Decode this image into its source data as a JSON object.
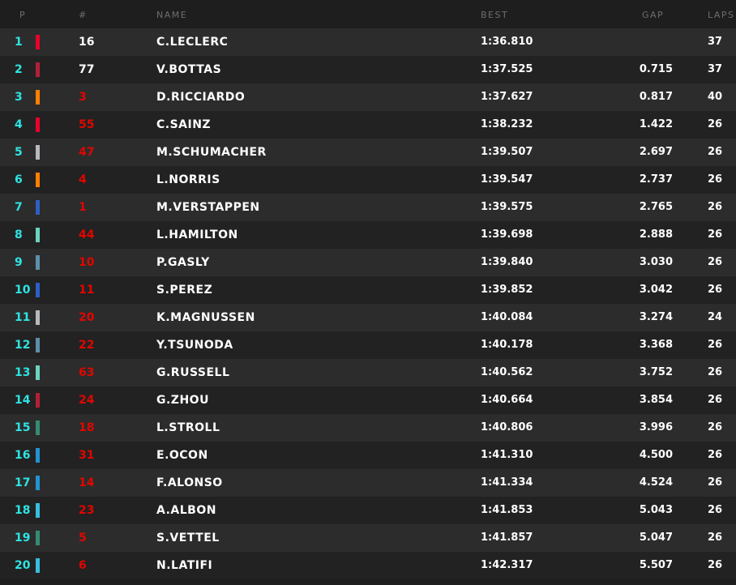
{
  "headers": {
    "pos": "P",
    "num": "#",
    "name": "NAME",
    "best": "BEST",
    "gap": "GAP",
    "laps": "LAPS"
  },
  "rows": [
    {
      "pos": "1",
      "num": "16",
      "name": "C.LECLERC",
      "best": "1:36.810",
      "gap": "",
      "laps": "37",
      "team_color": "#e8002d",
      "num_color": "#ffffff"
    },
    {
      "pos": "2",
      "num": "77",
      "name": "V.BOTTAS",
      "best": "1:37.525",
      "gap": "0.715",
      "laps": "37",
      "team_color": "#b12039",
      "num_color": "#ffffff"
    },
    {
      "pos": "3",
      "num": "3",
      "name": "D.RICCIARDO",
      "best": "1:37.627",
      "gap": "0.817",
      "laps": "40",
      "team_color": "#ff8000"
    },
    {
      "pos": "4",
      "num": "55",
      "name": "C.SAINZ",
      "best": "1:38.232",
      "gap": "1.422",
      "laps": "26",
      "team_color": "#e8002d"
    },
    {
      "pos": "5",
      "num": "47",
      "name": "M.SCHUMACHER",
      "best": "1:39.507",
      "gap": "2.697",
      "laps": "26",
      "team_color": "#b6babd"
    },
    {
      "pos": "6",
      "num": "4",
      "name": "L.NORRIS",
      "best": "1:39.547",
      "gap": "2.737",
      "laps": "26",
      "team_color": "#ff8000"
    },
    {
      "pos": "7",
      "num": "1",
      "name": "M.VERSTAPPEN",
      "best": "1:39.575",
      "gap": "2.765",
      "laps": "26",
      "team_color": "#2d5fc4"
    },
    {
      "pos": "8",
      "num": "44",
      "name": "L.HAMILTON",
      "best": "1:39.698",
      "gap": "2.888",
      "laps": "26",
      "team_color": "#6cd3bf"
    },
    {
      "pos": "9",
      "num": "10",
      "name": "P.GASLY",
      "best": "1:39.840",
      "gap": "3.030",
      "laps": "26",
      "team_color": "#5e8faa"
    },
    {
      "pos": "10",
      "num": "11",
      "name": "S.PEREZ",
      "best": "1:39.852",
      "gap": "3.042",
      "laps": "26",
      "team_color": "#2d5fc4"
    },
    {
      "pos": "11",
      "num": "20",
      "name": "K.MAGNUSSEN",
      "best": "1:40.084",
      "gap": "3.274",
      "laps": "24",
      "team_color": "#b6babd"
    },
    {
      "pos": "12",
      "num": "22",
      "name": "Y.TSUNODA",
      "best": "1:40.178",
      "gap": "3.368",
      "laps": "26",
      "team_color": "#5e8faa"
    },
    {
      "pos": "13",
      "num": "63",
      "name": "G.RUSSELL",
      "best": "1:40.562",
      "gap": "3.752",
      "laps": "26",
      "team_color": "#6cd3bf"
    },
    {
      "pos": "14",
      "num": "24",
      "name": "G.ZHOU",
      "best": "1:40.664",
      "gap": "3.854",
      "laps": "26",
      "team_color": "#b12039"
    },
    {
      "pos": "15",
      "num": "18",
      "name": "L.STROLL",
      "best": "1:40.806",
      "gap": "3.996",
      "laps": "26",
      "team_color": "#358c75"
    },
    {
      "pos": "16",
      "num": "31",
      "name": "E.OCON",
      "best": "1:41.310",
      "gap": "4.500",
      "laps": "26",
      "team_color": "#2293d1"
    },
    {
      "pos": "17",
      "num": "14",
      "name": "F.ALONSO",
      "best": "1:41.334",
      "gap": "4.524",
      "laps": "26",
      "team_color": "#2293d1"
    },
    {
      "pos": "18",
      "num": "23",
      "name": "A.ALBON",
      "best": "1:41.853",
      "gap": "5.043",
      "laps": "26",
      "team_color": "#37bedd"
    },
    {
      "pos": "19",
      "num": "5",
      "name": "S.VETTEL",
      "best": "1:41.857",
      "gap": "5.047",
      "laps": "26",
      "team_color": "#358c75"
    },
    {
      "pos": "20",
      "num": "6",
      "name": "N.LATIFI",
      "best": "1:42.317",
      "gap": "5.507",
      "laps": "26",
      "team_color": "#37bedd"
    }
  ]
}
